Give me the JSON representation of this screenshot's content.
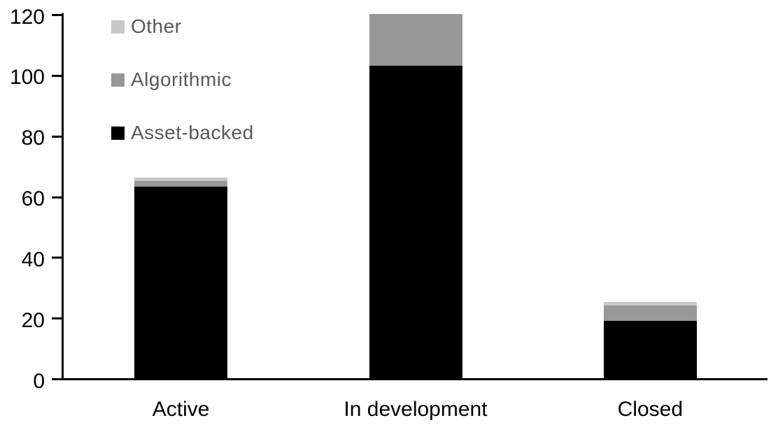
{
  "chart_data": {
    "type": "bar",
    "stacked": true,
    "title": "",
    "xlabel": "",
    "ylabel": "",
    "categories": [
      "Active",
      "In development",
      "Closed"
    ],
    "series": [
      {
        "name": "Asset-backed",
        "color": "#000000",
        "values": [
          63,
          103,
          19
        ]
      },
      {
        "name": "Algorithmic",
        "color": "#989898",
        "values": [
          2,
          17,
          5
        ]
      },
      {
        "name": "Other",
        "color": "#c8c8c8",
        "values": [
          1,
          0,
          1
        ]
      }
    ],
    "totals": [
      66,
      120,
      25
    ],
    "yticks": [
      0,
      20,
      40,
      60,
      80,
      100,
      120
    ],
    "ylim": [
      0,
      120
    ],
    "grid": false,
    "legend_position": "inside-top-left",
    "legend_order_top_to_bottom": [
      "Other",
      "Algorithmic",
      "Asset-backed"
    ],
    "legend_text_color": "#595959",
    "axis_color": "#000000"
  }
}
